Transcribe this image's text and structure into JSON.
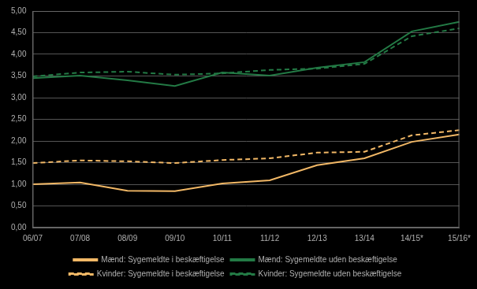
{
  "chart_data": {
    "type": "line",
    "categories": [
      "06/07",
      "07/08",
      "08/09",
      "09/10",
      "10/11",
      "11/12",
      "12/13",
      "13/14",
      "14/15*",
      "15/16*"
    ],
    "series": [
      {
        "name": "Mænd: Sygemeldte i beskæftigelse",
        "color": "#f2b866",
        "line_style": "solid",
        "values": [
          1.0,
          1.04,
          0.85,
          0.84,
          1.02,
          1.09,
          1.44,
          1.6,
          1.98,
          2.15
        ]
      },
      {
        "name": "Mænd: Sygemeldte uden beskæftigelse",
        "color": "#237a45",
        "line_style": "solid",
        "values": [
          3.45,
          3.51,
          3.4,
          3.27,
          3.58,
          3.51,
          3.69,
          3.82,
          4.53,
          4.75
        ]
      },
      {
        "name": "Kvinder: Sygemeldte i beskæftigelse",
        "color": "#f2b866",
        "line_style": "dashed",
        "values": [
          1.49,
          1.55,
          1.53,
          1.49,
          1.56,
          1.6,
          1.73,
          1.75,
          2.13,
          2.25
        ]
      },
      {
        "name": "Kvinder: Sygemeldte uden beskæftigelse",
        "color": "#237a45",
        "line_style": "dashed",
        "values": [
          3.49,
          3.58,
          3.6,
          3.53,
          3.56,
          3.64,
          3.67,
          3.78,
          4.42,
          4.6
        ]
      }
    ],
    "ylim": [
      0,
      5
    ],
    "yticks": [
      {
        "value": 0,
        "label": "0,00"
      },
      {
        "value": 0.5,
        "label": "0,50"
      },
      {
        "value": 1,
        "label": "1,00"
      },
      {
        "value": 1.5,
        "label": "1,50"
      },
      {
        "value": 2,
        "label": "2,00"
      },
      {
        "value": 2.5,
        "label": "2,50"
      },
      {
        "value": 3,
        "label": "3,00"
      },
      {
        "value": 3.5,
        "label": "3,50"
      },
      {
        "value": 4,
        "label": "4,00"
      },
      {
        "value": 4.5,
        "label": "4,50"
      },
      {
        "value": 5,
        "label": "5,00"
      }
    ],
    "grid": true,
    "legend": "bottom"
  }
}
